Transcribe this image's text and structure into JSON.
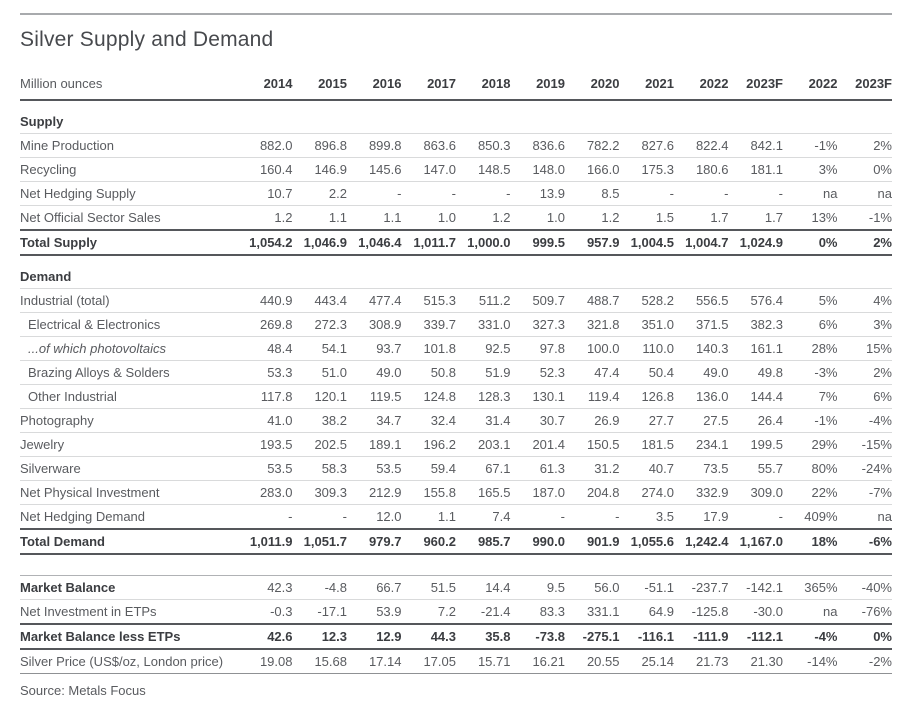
{
  "title": "Silver Supply and Demand",
  "source": "Source: Metals Focus",
  "chart_data": {
    "type": "table",
    "unit_label": "Million ounces",
    "columns": [
      "2014",
      "2015",
      "2016",
      "2017",
      "2018",
      "2019",
      "2020",
      "2021",
      "2022",
      "2023F",
      "2022",
      "2023F"
    ],
    "rows": [
      {
        "label": "Supply",
        "style": "section",
        "values": []
      },
      {
        "label": "Mine Production",
        "style": "",
        "values": [
          "882.0",
          "896.8",
          "899.8",
          "863.6",
          "850.3",
          "836.6",
          "782.2",
          "827.6",
          "822.4",
          "842.1",
          "-1%",
          "2%"
        ]
      },
      {
        "label": "Recycling",
        "style": "",
        "values": [
          "160.4",
          "146.9",
          "145.6",
          "147.0",
          "148.5",
          "148.0",
          "166.0",
          "175.3",
          "180.6",
          "181.1",
          "3%",
          "0%"
        ]
      },
      {
        "label": "Net Hedging Supply",
        "style": "",
        "values": [
          "10.7",
          "2.2",
          "-",
          "-",
          "-",
          "13.9",
          "8.5",
          "-",
          "-",
          "-",
          "na",
          "na"
        ]
      },
      {
        "label": "Net Official Sector Sales",
        "style": "",
        "values": [
          "1.2",
          "1.1",
          "1.1",
          "1.0",
          "1.2",
          "1.0",
          "1.2",
          "1.5",
          "1.7",
          "1.7",
          "13%",
          "-1%"
        ]
      },
      {
        "label": "Total Supply",
        "style": "total",
        "values": [
          "1,054.2",
          "1,046.9",
          "1,046.4",
          "1,011.7",
          "1,000.0",
          "999.5",
          "957.9",
          "1,004.5",
          "1,004.7",
          "1,024.9",
          "0%",
          "2%"
        ]
      },
      {
        "label": "Demand",
        "style": "section",
        "values": []
      },
      {
        "label": "Industrial (total)",
        "style": "",
        "values": [
          "440.9",
          "443.4",
          "477.4",
          "515.3",
          "511.2",
          "509.7",
          "488.7",
          "528.2",
          "556.5",
          "576.4",
          "5%",
          "4%"
        ]
      },
      {
        "label": "Electrical & Electronics",
        "style": "indent",
        "values": [
          "269.8",
          "272.3",
          "308.9",
          "339.7",
          "331.0",
          "327.3",
          "321.8",
          "351.0",
          "371.5",
          "382.3",
          "6%",
          "3%"
        ]
      },
      {
        "label": "...of which photovoltaics",
        "style": "indent italic",
        "values": [
          "48.4",
          "54.1",
          "93.7",
          "101.8",
          "92.5",
          "97.8",
          "100.0",
          "110.0",
          "140.3",
          "161.1",
          "28%",
          "15%"
        ]
      },
      {
        "label": "Brazing Alloys & Solders",
        "style": "indent",
        "values": [
          "53.3",
          "51.0",
          "49.0",
          "50.8",
          "51.9",
          "52.3",
          "47.4",
          "50.4",
          "49.0",
          "49.8",
          "-3%",
          "2%"
        ]
      },
      {
        "label": "Other Industrial",
        "style": "indent",
        "values": [
          "117.8",
          "120.1",
          "119.5",
          "124.8",
          "128.3",
          "130.1",
          "119.4",
          "126.8",
          "136.0",
          "144.4",
          "7%",
          "6%"
        ]
      },
      {
        "label": "Photography",
        "style": "",
        "values": [
          "41.0",
          "38.2",
          "34.7",
          "32.4",
          "31.4",
          "30.7",
          "26.9",
          "27.7",
          "27.5",
          "26.4",
          "-1%",
          "-4%"
        ]
      },
      {
        "label": "Jewelry",
        "style": "",
        "values": [
          "193.5",
          "202.5",
          "189.1",
          "196.2",
          "203.1",
          "201.4",
          "150.5",
          "181.5",
          "234.1",
          "199.5",
          "29%",
          "-15%"
        ]
      },
      {
        "label": "Silverware",
        "style": "",
        "values": [
          "53.5",
          "58.3",
          "53.5",
          "59.4",
          "67.1",
          "61.3",
          "31.2",
          "40.7",
          "73.5",
          "55.7",
          "80%",
          "-24%"
        ]
      },
      {
        "label": "Net Physical Investment",
        "style": "",
        "values": [
          "283.0",
          "309.3",
          "212.9",
          "155.8",
          "165.5",
          "187.0",
          "204.8",
          "274.0",
          "332.9",
          "309.0",
          "22%",
          "-7%"
        ]
      },
      {
        "label": "Net Hedging Demand",
        "style": "",
        "values": [
          "-",
          "-",
          "12.0",
          "1.1",
          "7.4",
          "-",
          "-",
          "3.5",
          "17.9",
          "-",
          "409%",
          "na"
        ]
      },
      {
        "label": "Total Demand",
        "style": "total",
        "values": [
          "1,011.9",
          "1,051.7",
          "979.7",
          "960.2",
          "985.7",
          "990.0",
          "901.9",
          "1,055.6",
          "1,242.4",
          "1,167.0",
          "18%",
          "-6%"
        ]
      },
      {
        "label": "",
        "style": "spacer",
        "values": []
      },
      {
        "label": "Market Balance",
        "style": "boldlabel topline",
        "values": [
          "42.3",
          "-4.8",
          "66.7",
          "51.5",
          "14.4",
          "9.5",
          "56.0",
          "-51.1",
          "-237.7",
          "-142.1",
          "365%",
          "-40%"
        ]
      },
      {
        "label": "Net Investment in ETPs",
        "style": "",
        "values": [
          "-0.3",
          "-17.1",
          "53.9",
          "7.2",
          "-21.4",
          "83.3",
          "331.1",
          "64.9",
          "-125.8",
          "-30.0",
          "na",
          "-76%"
        ]
      },
      {
        "label": "Market Balance less ETPs",
        "style": "total",
        "values": [
          "42.6",
          "12.3",
          "12.9",
          "44.3",
          "35.8",
          "-73.8",
          "-275.1",
          "-116.1",
          "-111.9",
          "-112.1",
          "-4%",
          "0%"
        ]
      },
      {
        "label": "Silver Price (US$/oz, London price)",
        "style": "price",
        "values": [
          "19.08",
          "15.68",
          "17.14",
          "17.05",
          "15.71",
          "16.21",
          "20.55",
          "25.14",
          "21.73",
          "21.30",
          "-14%",
          "-2%"
        ]
      }
    ]
  }
}
